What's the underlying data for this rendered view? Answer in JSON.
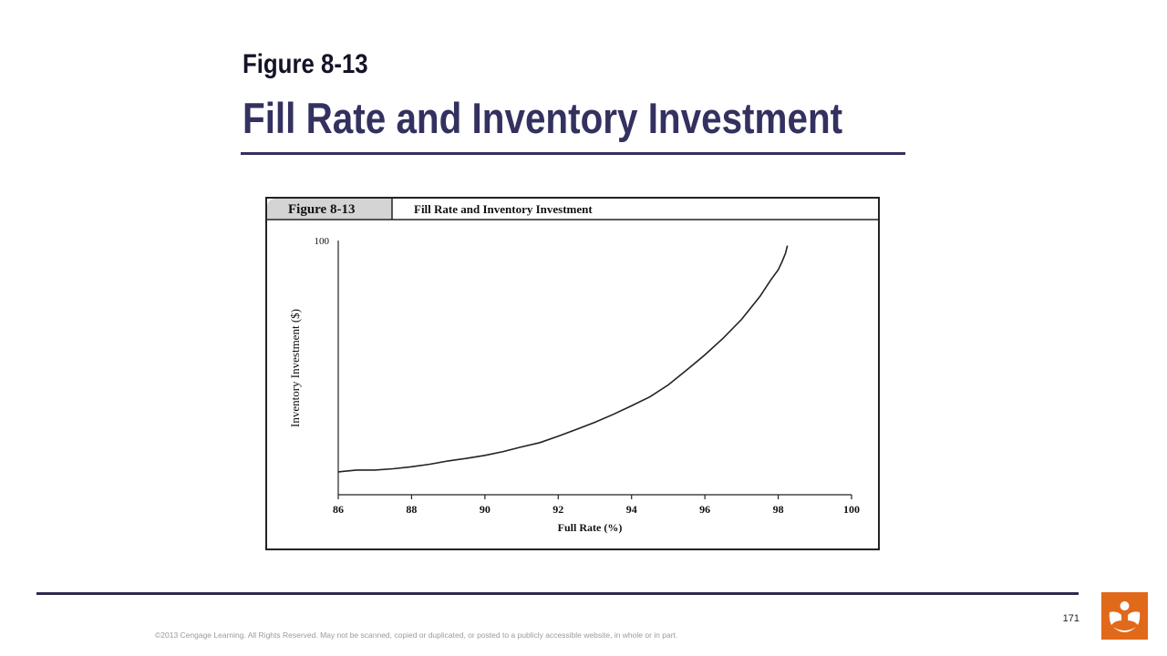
{
  "slide": {
    "figure_number": "Figure 8-13",
    "title": "Fill Rate and Inventory Investment",
    "page_number": "171",
    "copyright": "©2013 Cengage Learning. All Rights Reserved. May not be scanned, copied or duplicated, or posted to a publicly accessible website, in whole or in part.",
    "accent_color": "#33315f",
    "logo_color": "#e0691a",
    "logo_icon": "cengage-logo-icon"
  },
  "chart_data": {
    "type": "line",
    "header_label": "Figure 8-13",
    "title": "Fill Rate and Inventory Investment",
    "xlabel": "Full Rate (%)",
    "ylabel": "Inventory Investment ($)",
    "xlim": [
      86,
      100
    ],
    "ylim": [
      0,
      100
    ],
    "x_ticks": [
      "86",
      "88",
      "90",
      "92",
      "94",
      "96",
      "98",
      "100"
    ],
    "y_ticks": [
      "100"
    ],
    "grid": false,
    "legend": "none",
    "series": [
      {
        "x": [
          86.0,
          86.5,
          87.0,
          87.5,
          88.0,
          88.5,
          89.0,
          89.5,
          90.0,
          90.5,
          91.0,
          91.5,
          92.0,
          92.5,
          93.0,
          93.5,
          94.0,
          94.5,
          95.0,
          95.5,
          96.0,
          96.5,
          97.0,
          97.5,
          97.8,
          98.0,
          98.1,
          98.2,
          98.25
        ],
        "y": [
          9.0,
          9.7,
          9.7,
          10.2,
          11.0,
          12.0,
          13.3,
          14.3,
          15.5,
          17.0,
          18.8,
          20.5,
          23.0,
          25.7,
          28.5,
          31.6,
          35.0,
          38.5,
          43.2,
          49.0,
          55.0,
          61.6,
          69.0,
          78.0,
          84.5,
          88.5,
          91.5,
          95.0,
          98.0
        ]
      }
    ]
  }
}
